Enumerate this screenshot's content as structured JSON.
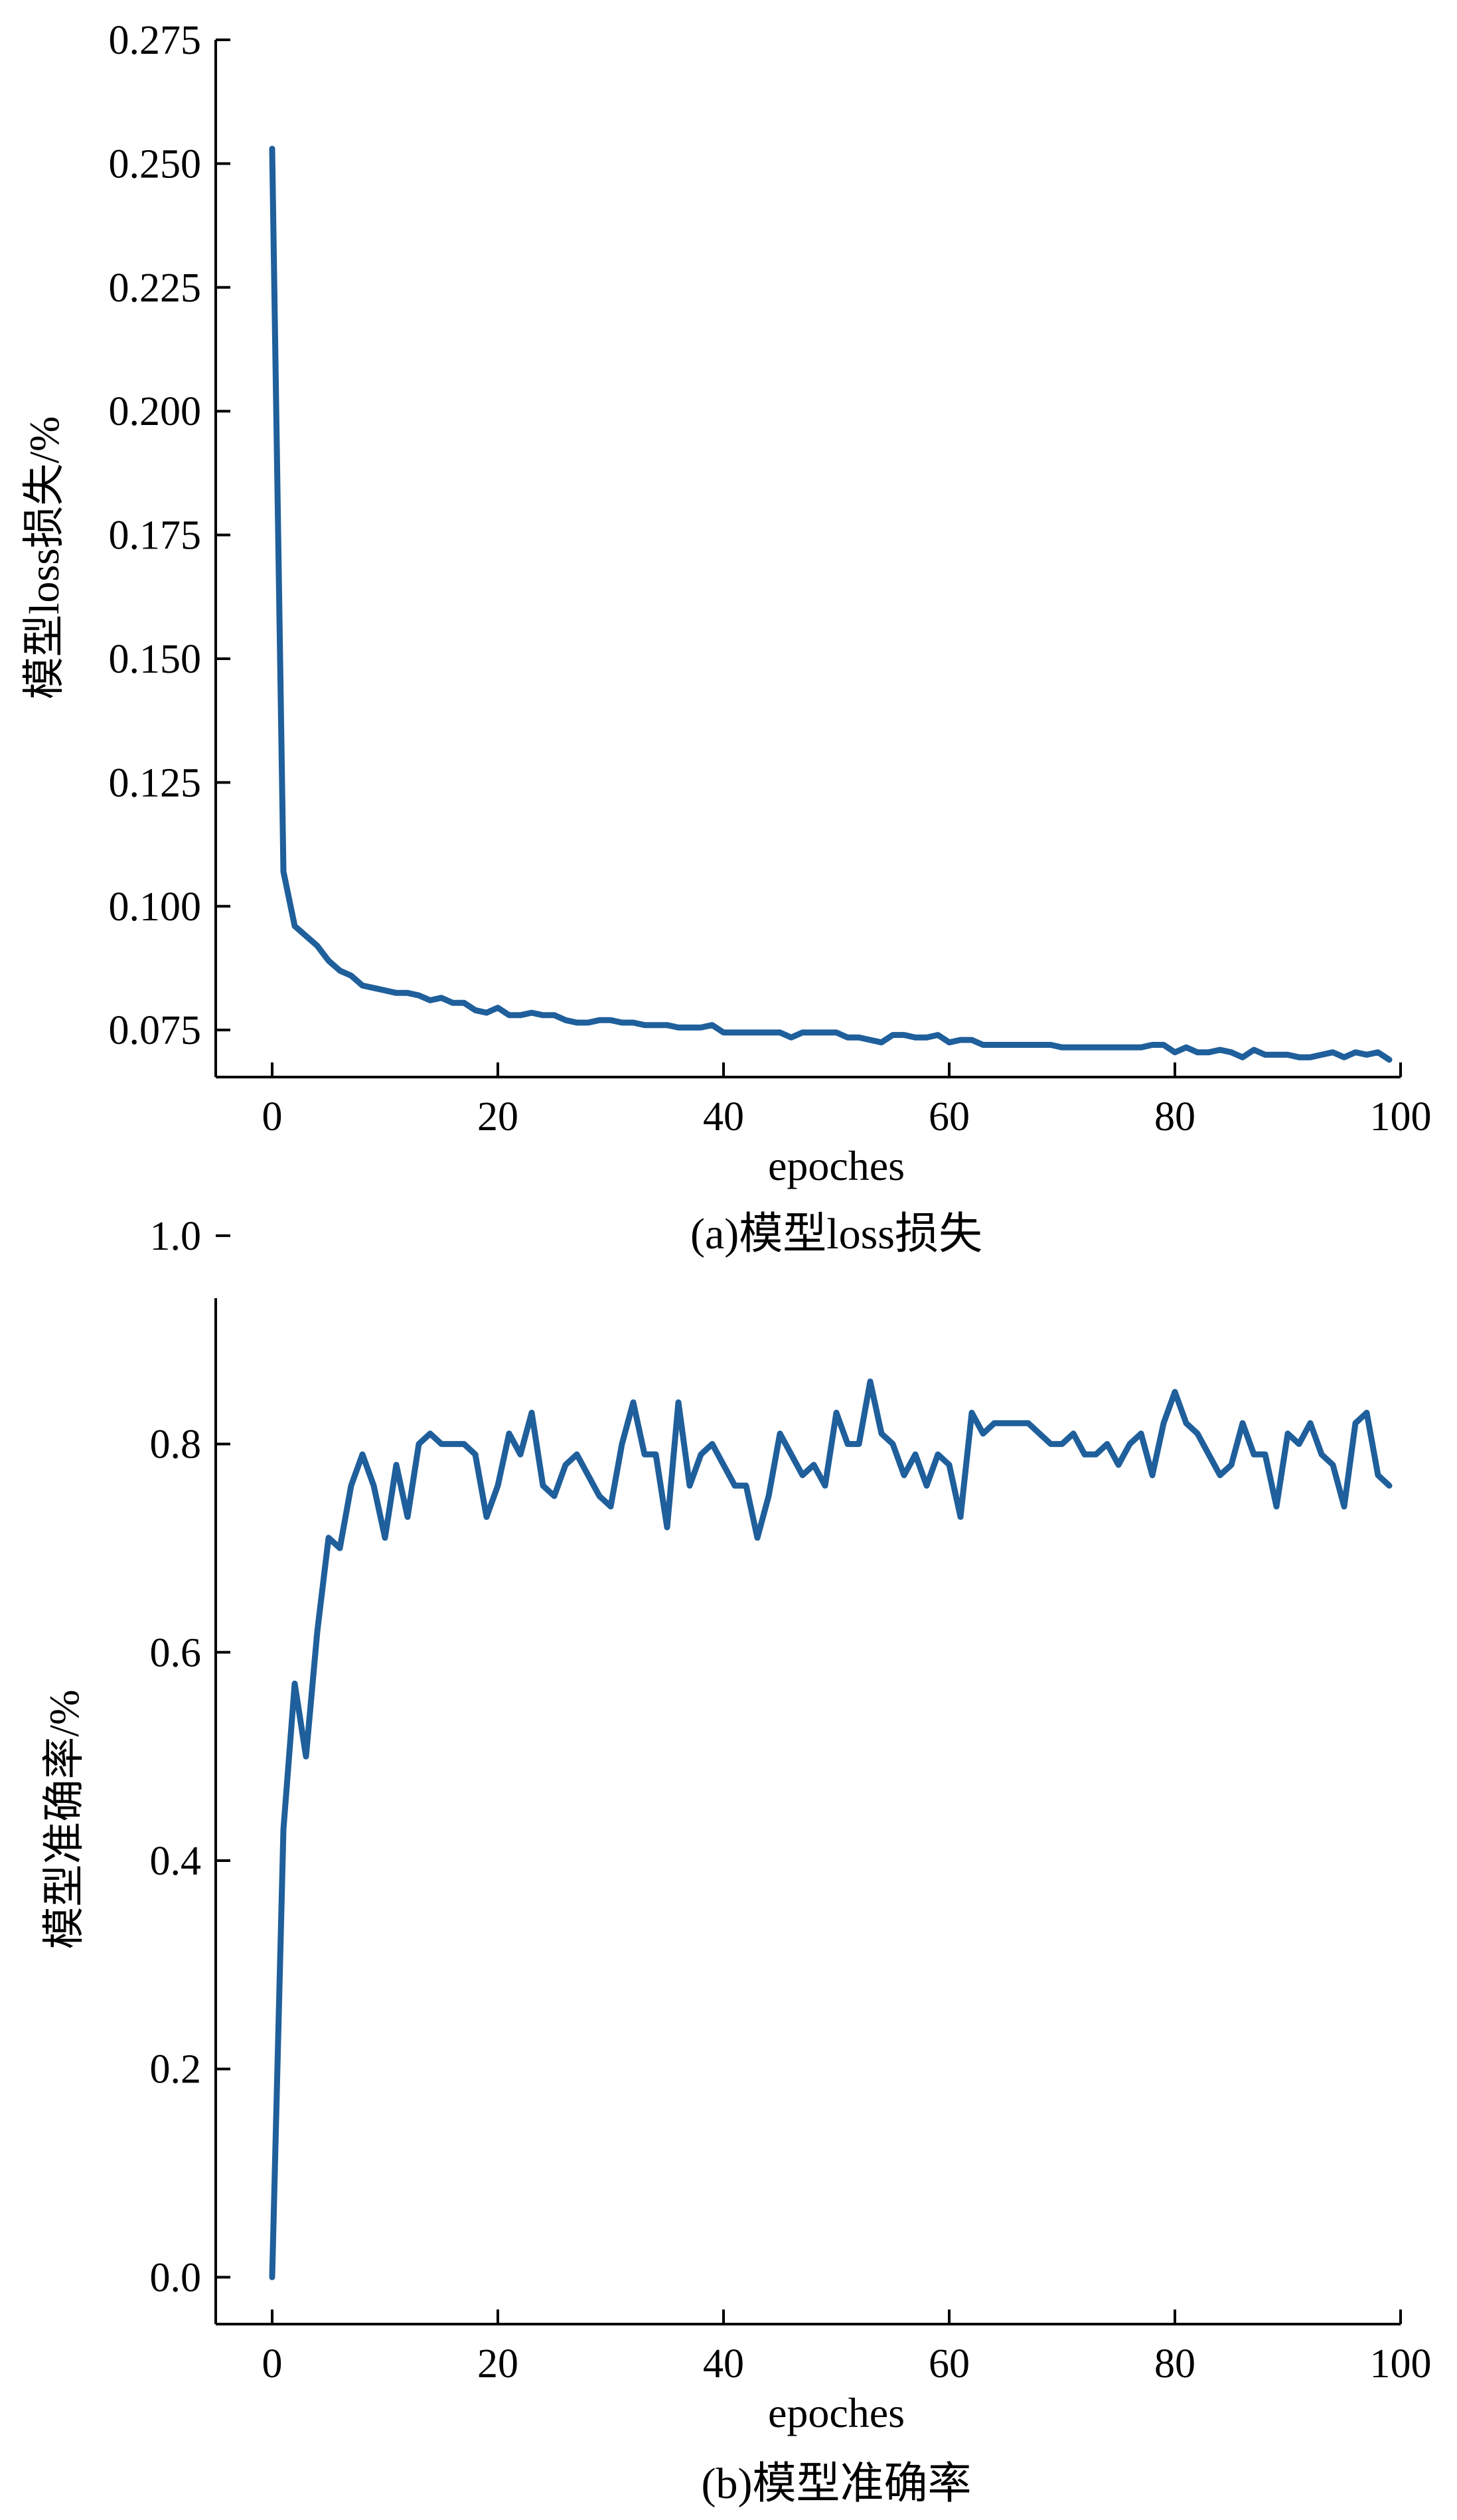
{
  "colors": {
    "series": "#1f5f9b",
    "axis": "#000000"
  },
  "chart_data": [
    {
      "type": "line",
      "title": "",
      "caption": "(a)模型loss损失",
      "xlabel": "epoches",
      "ylabel": "模型loss损失/%",
      "xlim": [
        -5,
        100
      ],
      "ylim": [
        0.0655,
        0.275
      ],
      "xticks": [
        0,
        20,
        40,
        60,
        80,
        100
      ],
      "xtick_labels": [
        "0",
        "20",
        "40",
        "60",
        "80",
        "100"
      ],
      "yticks": [
        0.075,
        0.1,
        0.125,
        0.15,
        0.175,
        0.2,
        0.225,
        0.25,
        0.275
      ],
      "ytick_labels": [
        "0.075",
        "0.100",
        "0.125",
        "0.150",
        "0.175",
        "0.200",
        "0.225",
        "0.250",
        "0.275"
      ],
      "grid": false,
      "series": [
        {
          "x": [
            0,
            1,
            2,
            3,
            4,
            5,
            6,
            7,
            8,
            9,
            10,
            11,
            12,
            13,
            14,
            15,
            16,
            17,
            18,
            19,
            20,
            21,
            22,
            23,
            24,
            25,
            26,
            27,
            28,
            29,
            30,
            31,
            32,
            33,
            34,
            35,
            36,
            37,
            38,
            39,
            40,
            41,
            42,
            43,
            44,
            45,
            46,
            47,
            48,
            49,
            50,
            51,
            52,
            53,
            54,
            55,
            56,
            57,
            58,
            59,
            60,
            61,
            62,
            63,
            64,
            65,
            66,
            67,
            68,
            69,
            70,
            71,
            72,
            73,
            74,
            75,
            76,
            77,
            78,
            79,
            80,
            81,
            82,
            83,
            84,
            85,
            86,
            87,
            88,
            89,
            90,
            91,
            92,
            93,
            94,
            95,
            96,
            97,
            98,
            99
          ],
          "values": [
            0.253,
            0.107,
            0.096,
            0.094,
            0.092,
            0.089,
            0.087,
            0.086,
            0.084,
            0.0835,
            0.083,
            0.0825,
            0.0825,
            0.082,
            0.081,
            0.0815,
            0.0805,
            0.0805,
            0.079,
            0.0785,
            0.0795,
            0.078,
            0.078,
            0.0785,
            0.078,
            0.078,
            0.077,
            0.0765,
            0.0765,
            0.077,
            0.077,
            0.0765,
            0.0765,
            0.076,
            0.076,
            0.076,
            0.0755,
            0.0755,
            0.0755,
            0.076,
            0.0745,
            0.0745,
            0.0745,
            0.0745,
            0.0745,
            0.0745,
            0.0735,
            0.0745,
            0.0745,
            0.0745,
            0.0745,
            0.0735,
            0.0735,
            0.073,
            0.0725,
            0.074,
            0.074,
            0.0735,
            0.0735,
            0.074,
            0.0725,
            0.073,
            0.073,
            0.072,
            0.072,
            0.072,
            0.072,
            0.072,
            0.072,
            0.072,
            0.0715,
            0.0715,
            0.0715,
            0.0715,
            0.0715,
            0.0715,
            0.0715,
            0.0715,
            0.072,
            0.072,
            0.0705,
            0.0715,
            0.0705,
            0.0705,
            0.071,
            0.0705,
            0.0695,
            0.071,
            0.07,
            0.07,
            0.07,
            0.0695,
            0.0695,
            0.07,
            0.0705,
            0.0695,
            0.0705,
            0.07,
            0.0705,
            0.069
          ]
        }
      ]
    },
    {
      "type": "line",
      "title": "",
      "caption": "(b)模型准确率",
      "xlabel": "epoches",
      "ylabel": "模型准确率/%",
      "xlim": [
        -5,
        100
      ],
      "ylim": [
        -0.045,
        0.94
      ],
      "xticks": [
        0,
        20,
        40,
        60,
        80,
        100
      ],
      "xtick_labels": [
        "0",
        "20",
        "40",
        "60",
        "80",
        "100"
      ],
      "yticks": [
        0.0,
        0.2,
        0.4,
        0.6,
        0.8,
        1.0
      ],
      "ytick_labels": [
        "0.0",
        "0.2",
        "0.4",
        "0.6",
        "0.8",
        "1.0"
      ],
      "grid": false,
      "series": [
        {
          "x": [
            0,
            1,
            2,
            3,
            4,
            5,
            6,
            7,
            8,
            9,
            10,
            11,
            12,
            13,
            14,
            15,
            16,
            17,
            18,
            19,
            20,
            21,
            22,
            23,
            24,
            25,
            26,
            27,
            28,
            29,
            30,
            31,
            32,
            33,
            34,
            35,
            36,
            37,
            38,
            39,
            40,
            41,
            42,
            43,
            44,
            45,
            46,
            47,
            48,
            49,
            50,
            51,
            52,
            53,
            54,
            55,
            56,
            57,
            58,
            59,
            60,
            61,
            62,
            63,
            64,
            65,
            66,
            67,
            68,
            69,
            70,
            71,
            72,
            73,
            74,
            75,
            76,
            77,
            78,
            79,
            80,
            81,
            82,
            83,
            84,
            85,
            86,
            87,
            88,
            89,
            90,
            91,
            92,
            93,
            94,
            95,
            96,
            97,
            98,
            99
          ],
          "values": [
            0.0,
            0.43,
            0.57,
            0.5,
            0.62,
            0.71,
            0.7,
            0.76,
            0.79,
            0.76,
            0.71,
            0.78,
            0.73,
            0.8,
            0.81,
            0.8,
            0.8,
            0.8,
            0.79,
            0.73,
            0.76,
            0.81,
            0.79,
            0.83,
            0.76,
            0.75,
            0.78,
            0.79,
            0.77,
            0.75,
            0.74,
            0.8,
            0.84,
            0.79,
            0.79,
            0.72,
            0.84,
            0.76,
            0.79,
            0.8,
            0.78,
            0.76,
            0.76,
            0.71,
            0.75,
            0.81,
            0.79,
            0.77,
            0.78,
            0.76,
            0.83,
            0.8,
            0.8,
            0.86,
            0.81,
            0.8,
            0.77,
            0.79,
            0.76,
            0.79,
            0.78,
            0.73,
            0.83,
            0.81,
            0.82,
            0.82,
            0.82,
            0.82,
            0.81,
            0.8,
            0.8,
            0.81,
            0.79,
            0.79,
            0.8,
            0.78,
            0.8,
            0.81,
            0.77,
            0.82,
            0.85,
            0.82,
            0.81,
            0.79,
            0.77,
            0.78,
            0.82,
            0.79,
            0.79,
            0.74,
            0.81,
            0.8,
            0.82,
            0.79,
            0.78,
            0.74,
            0.82,
            0.83,
            0.77,
            0.76
          ]
        }
      ]
    }
  ]
}
